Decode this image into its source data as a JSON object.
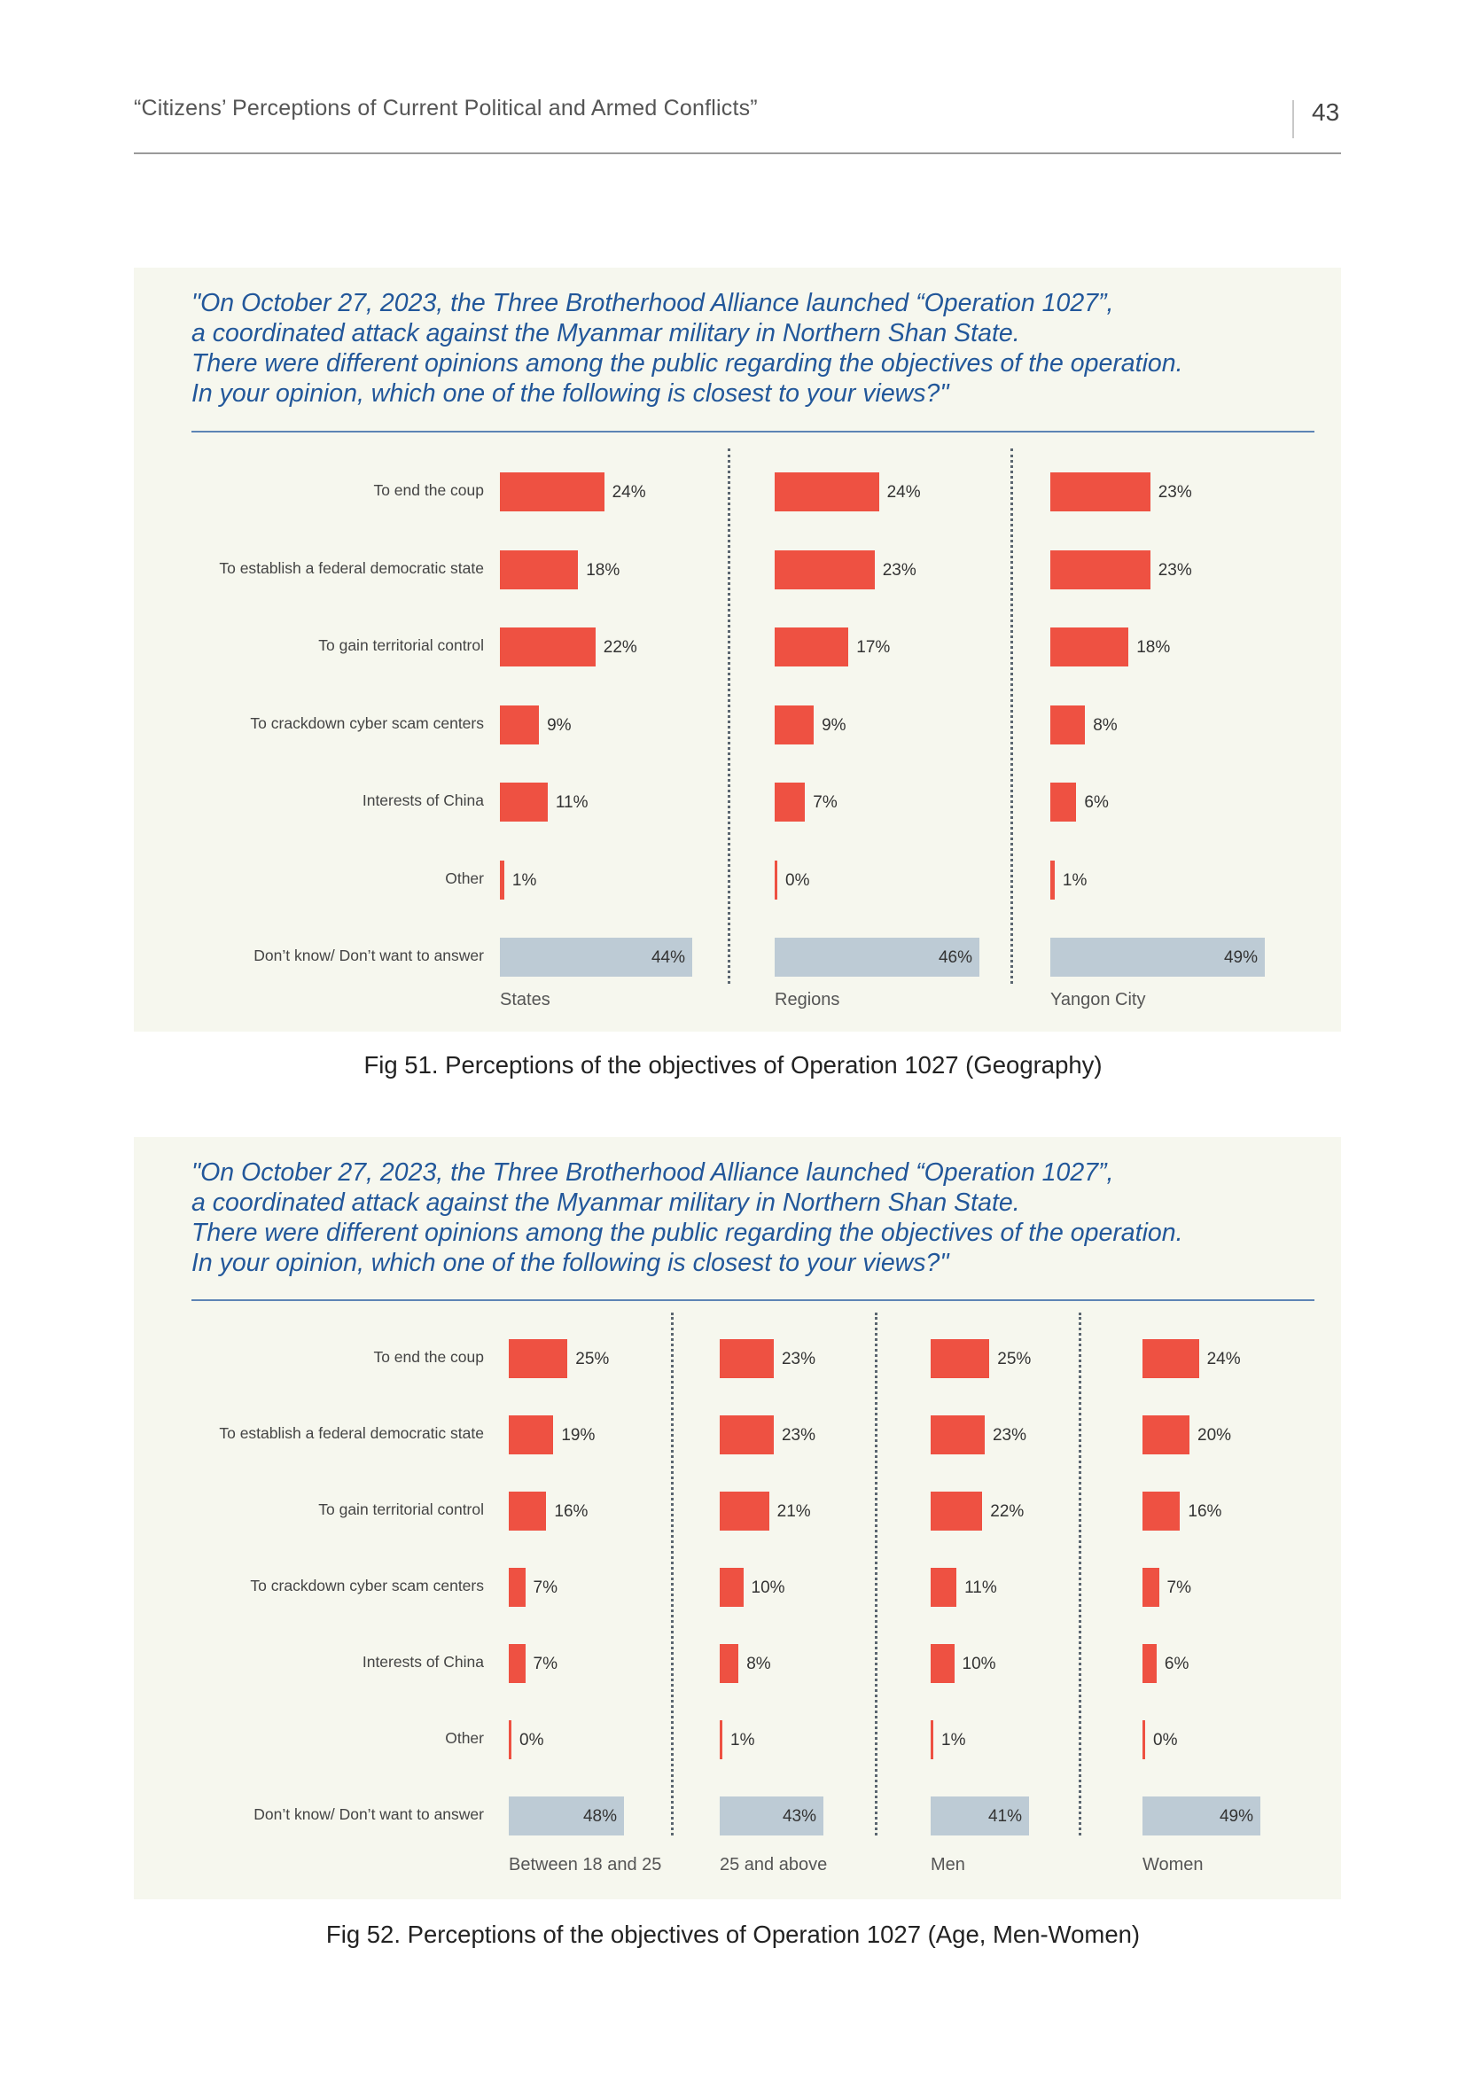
{
  "header": {
    "running_title": "“Citizens’ Perceptions of Current Political and Armed Conflicts”",
    "page_number": "43"
  },
  "colors": {
    "bar_answer": "#ee5142",
    "bar_dont_know": "#bdcbd5",
    "question_text": "#22579a",
    "panel_bg": "#f6f7ee"
  },
  "figures": [
    {
      "question_lines": [
        "\"On October 27, 2023, the Three Brotherhood Alliance launched “Operation 1027”,",
        "a coordinated attack against the Myanmar military in Northern Shan State.",
        "There were different opinions among the public regarding the objectives of the operation.",
        "In your opinion, which one of the following is closest to your views?\""
      ],
      "caption": "Fig 51. Perceptions of the objectives of Operation 1027 (Geography)"
    },
    {
      "question_lines": [
        "\"On October 27, 2023, the Three Brotherhood Alliance launched “Operation 1027”,",
        "a coordinated attack against the Myanmar military in Northern Shan State.",
        "There were different opinions among the public regarding the objectives of the operation.",
        "In your opinion, which one of the following is closest to your views?\""
      ],
      "caption": "Fig 52. Perceptions of the objectives of Operation 1027 (Age, Men-Women)"
    }
  ],
  "chart_data": [
    {
      "type": "bar",
      "orientation": "horizontal",
      "categories": [
        "To end the coup",
        "To establish a federal democratic state",
        "To gain territorial control",
        "To crackdown cyber scam centers",
        "Interests of China",
        "Other",
        "Don’t know/ Don’t want to answer"
      ],
      "series": [
        {
          "name": "States",
          "values": [
            24,
            18,
            22,
            9,
            11,
            1,
            44
          ],
          "labels": [
            "24%",
            "18%",
            "22%",
            "9%",
            "11%",
            "1%",
            "44%"
          ]
        },
        {
          "name": "Regions",
          "values": [
            24,
            23,
            17,
            9,
            7,
            0,
            46
          ],
          "labels": [
            "24%",
            "23%",
            "17%",
            "9%",
            "7%",
            "0%",
            "46%"
          ]
        },
        {
          "name": "Yangon City",
          "values": [
            23,
            23,
            18,
            8,
            6,
            1,
            49
          ],
          "labels": [
            "23%",
            "23%",
            "18%",
            "8%",
            "6%",
            "1%",
            "49%"
          ]
        }
      ],
      "unit": "%",
      "grid": false
    },
    {
      "type": "bar",
      "orientation": "horizontal",
      "categories": [
        "To end the coup",
        "To establish a federal democratic state",
        "To gain territorial control",
        "To crackdown cyber scam centers",
        "Interests of China",
        "Other",
        "Don’t know/ Don’t want to answer"
      ],
      "series": [
        {
          "name": "Between 18 and 25",
          "values": [
            25,
            19,
            16,
            7,
            7,
            0,
            48
          ],
          "labels": [
            "25%",
            "19%",
            "16%",
            "7%",
            "7%",
            "0%",
            "48%"
          ]
        },
        {
          "name": "25 and above",
          "values": [
            23,
            23,
            21,
            10,
            8,
            1,
            43
          ],
          "labels": [
            "23%",
            "23%",
            "21%",
            "10%",
            "8%",
            "1%",
            "43%"
          ]
        },
        {
          "name": "Men",
          "values": [
            25,
            23,
            22,
            11,
            10,
            1,
            41
          ],
          "labels": [
            "25%",
            "23%",
            "22%",
            "11%",
            "10%",
            "1%",
            "41%"
          ]
        },
        {
          "name": "Women",
          "values": [
            24,
            20,
            16,
            7,
            6,
            0,
            49
          ],
          "labels": [
            "24%",
            "20%",
            "16%",
            "7%",
            "6%",
            "0%",
            "49%"
          ]
        }
      ],
      "unit": "%",
      "grid": false
    }
  ]
}
